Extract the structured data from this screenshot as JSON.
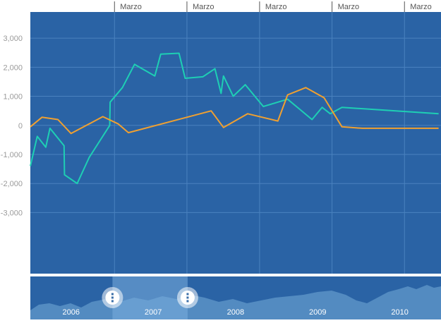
{
  "chart_data": {
    "type": "line",
    "top_axis_labels": [
      {
        "x": "2006-03-01",
        "label": "Marzo"
      },
      {
        "x": "2007-03-01",
        "label": "Marzo"
      },
      {
        "x": "2008-03-01",
        "label": "Marzo"
      },
      {
        "x": "2009-03-01",
        "label": "Marzo"
      },
      {
        "x": "2010-03-01",
        "label": "Marzo"
      }
    ],
    "y_tick_labels": [
      {
        "value": 3000,
        "label": "3,000"
      },
      {
        "value": 2000,
        "label": "2,000"
      },
      {
        "value": 1000,
        "label": "1,000"
      },
      {
        "value": 0,
        "label": "0"
      },
      {
        "value": -1000,
        "label": "-1,000"
      },
      {
        "value": -2000,
        "label": "-2,000"
      },
      {
        "value": -3000,
        "label": "-3,000"
      }
    ],
    "ylim": [
      -5100,
      3900
    ],
    "xlim": [
      "2005-01-01",
      "2010-09-01"
    ],
    "grid": true,
    "series": [
      {
        "color": "#1ecfb4",
        "points": [
          [
            "2005-01-01",
            -1400
          ],
          [
            "2005-02-05",
            -380
          ],
          [
            "2005-03-20",
            -750
          ],
          [
            "2005-04-10",
            -100
          ],
          [
            "2005-06-20",
            -700
          ],
          [
            "2005-06-22",
            -1700
          ],
          [
            "2005-08-25",
            -2000
          ],
          [
            "2005-10-25",
            -1100
          ],
          [
            "2006-02-05",
            0
          ],
          [
            "2006-02-07",
            800
          ],
          [
            "2006-04-10",
            1300
          ],
          [
            "2006-06-10",
            2100
          ],
          [
            "2006-09-20",
            1700
          ],
          [
            "2006-10-20",
            2450
          ],
          [
            "2007-01-20",
            2480
          ],
          [
            "2007-02-20",
            1620
          ],
          [
            "2007-05-20",
            1670
          ],
          [
            "2007-07-20",
            1950
          ],
          [
            "2007-08-20",
            1100
          ],
          [
            "2007-09-01",
            1700
          ],
          [
            "2007-10-20",
            1000
          ],
          [
            "2007-12-20",
            1400
          ],
          [
            "2008-03-20",
            650
          ],
          [
            "2008-07-20",
            900
          ],
          [
            "2008-09-20",
            550
          ],
          [
            "2008-11-20",
            200
          ],
          [
            "2009-01-10",
            620
          ],
          [
            "2009-02-20",
            400
          ],
          [
            "2009-04-20",
            620
          ],
          [
            "2010-08-20",
            400
          ]
        ]
      },
      {
        "color": "#f0a030",
        "points": [
          [
            "2005-01-01",
            -50
          ],
          [
            "2005-03-01",
            280
          ],
          [
            "2005-05-20",
            200
          ],
          [
            "2005-07-25",
            -280
          ],
          [
            "2006-01-01",
            300
          ],
          [
            "2006-03-20",
            50
          ],
          [
            "2006-05-10",
            -250
          ],
          [
            "2007-07-01",
            500
          ],
          [
            "2007-09-01",
            -70
          ],
          [
            "2008-01-01",
            400
          ],
          [
            "2008-06-01",
            150
          ],
          [
            "2008-07-20",
            1050
          ],
          [
            "2008-10-20",
            1300
          ],
          [
            "2009-01-20",
            950
          ],
          [
            "2009-04-20",
            -50
          ],
          [
            "2009-08-01",
            -100
          ],
          [
            "2010-08-20",
            -100
          ]
        ]
      }
    ],
    "navigator": {
      "year_labels": [
        {
          "x": "2006-07-01",
          "label": "2006"
        },
        {
          "x": "2007-07-01",
          "label": "2007"
        },
        {
          "x": "2008-07-01",
          "label": "2008"
        },
        {
          "x": "2009-07-01",
          "label": "2009"
        },
        {
          "x": "2010-07-01",
          "label": "2010"
        }
      ],
      "selection": [
        "2007-01-01",
        "2007-12-01"
      ],
      "xlim": [
        "2006-01-01",
        "2010-12-31"
      ]
    }
  },
  "colors": {
    "plot_bg": "#2a63a5",
    "grid": "#4a82bf",
    "navigator_bg": "#2a63a5",
    "navigator_area": "#5b92c5",
    "selection": "#7aaede",
    "handle": "#ffffff",
    "tick_text": "#9a9a9a",
    "nav_text": "#ffffff"
  }
}
